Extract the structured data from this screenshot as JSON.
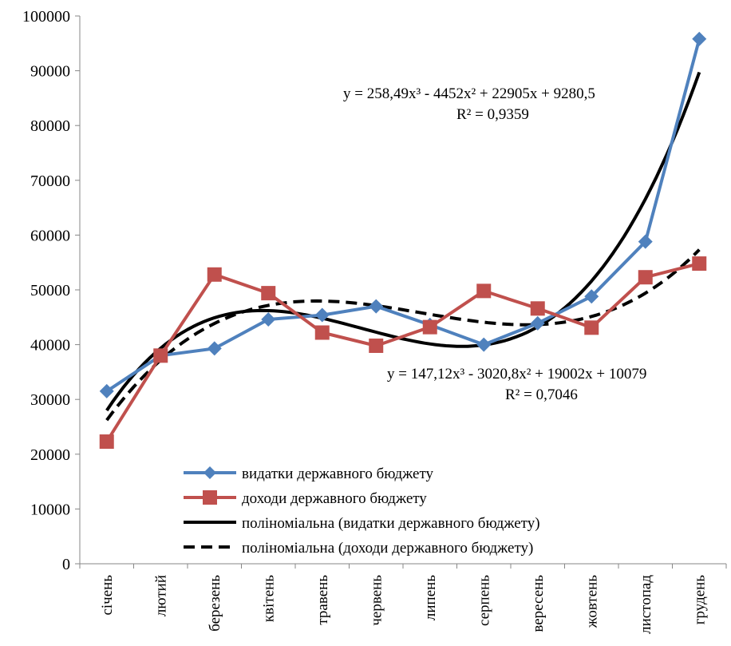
{
  "chart_data": {
    "type": "line",
    "categories": [
      "січень",
      "лютий",
      "березень",
      "квітень",
      "травень",
      "червень",
      "липень",
      "серпень",
      "вересень",
      "жовтень",
      "листопад",
      "грудень"
    ],
    "ylim": [
      0,
      100000
    ],
    "yticks": [
      0,
      10000,
      20000,
      30000,
      40000,
      50000,
      60000,
      70000,
      80000,
      90000,
      100000
    ],
    "grid": false,
    "legend_position": "bottom-center",
    "series": [
      {
        "name": "видатки державного бюджету",
        "color": "#4F81BD",
        "marker": "diamond",
        "values": [
          31500,
          38000,
          39300,
          44600,
          45400,
          47000,
          43600,
          40000,
          43900,
          48800,
          58800,
          95800
        ]
      },
      {
        "name": "доходи державного бюджету",
        "color": "#C0504D",
        "marker": "square",
        "values": [
          22300,
          38000,
          52800,
          49400,
          42200,
          39800,
          43200,
          49800,
          46600,
          43100,
          52300,
          54800
        ]
      }
    ],
    "trendlines": [
      {
        "name": "поліноміальна (видатки державного бюджету)",
        "color": "#000000",
        "style": "solid",
        "coefficients": [
          258.49,
          -4452,
          22905,
          9280.5
        ],
        "equation": "y = 258,49x³ - 4452x² + 22905x + 9280,5",
        "r2": "R² = 0,9359"
      },
      {
        "name": "поліноміальна (доходи державного бюджету)",
        "color": "#000000",
        "style": "dashed",
        "coefficients": [
          147.12,
          -3020.8,
          19002,
          10079
        ],
        "equation": "y = 147,12x³ - 3020,8x² + 19002x + 10079",
        "r2": "R² = 0,7046"
      }
    ]
  }
}
